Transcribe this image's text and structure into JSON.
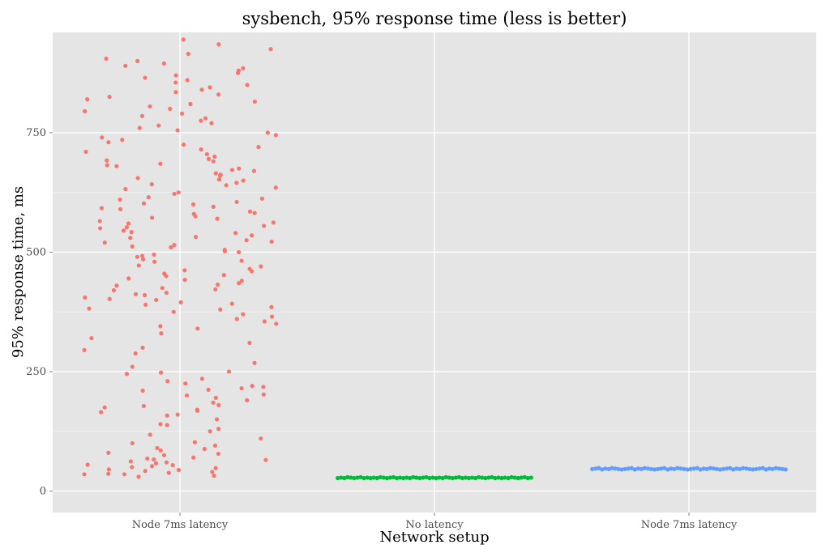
{
  "chart_data": {
    "type": "scatter",
    "title": "sysbench, 95% response time (less is better)",
    "xlabel": "Network setup",
    "ylabel": "95% response time, ms",
    "categories": [
      "Node 7ms latency",
      "No latency",
      "Node 7ms latency"
    ],
    "ylim": [
      -45,
      960
    ],
    "yticks": [
      0,
      250,
      500,
      750
    ],
    "grid": true,
    "legend": "none",
    "series": [
      {
        "category_index": 0,
        "color": "#F8766D",
        "values": [
          845,
          785,
          780,
          745,
          700,
          690,
          680,
          670,
          660,
          650,
          640,
          615,
          605,
          590,
          575,
          560,
          545,
          540,
          535,
          525,
          520,
          515,
          505,
          495,
          490,
          480,
          470,
          460,
          455,
          450,
          440,
          430,
          420,
          410,
          400,
          395,
          385,
          375,
          250,
          245,
          230,
          220,
          215,
          210,
          200,
          190,
          180,
          175,
          170,
          165,
          150,
          140,
          130,
          100,
          90,
          85,
          75,
          65,
          60,
          55,
          50,
          45,
          40,
          35,
          30,
          900,
          895,
          890,
          880,
          870,
          860,
          850,
          840,
          830,
          820,
          810,
          800,
          790,
          770,
          760,
          755,
          750,
          735,
          725,
          720,
          715,
          710,
          705,
          695,
          685,
          675,
          665,
          655,
          645,
          635,
          625,
          610,
          600,
          595,
          585,
          580,
          570,
          565,
          555,
          550,
          530,
          510,
          500,
          485,
          465,
          445,
          435,
          425,
          415,
          405,
          390,
          380,
          370,
          360,
          350,
          340,
          310,
          300,
          295,
          260,
          225,
          212,
          195,
          185,
          160,
          125,
          110,
          95,
          80,
          70,
          35,
          32,
          38,
          42,
          48,
          52,
          58,
          62,
          68,
          905,
          915,
          925,
          935,
          945,
          885,
          875,
          865,
          855,
          835,
          825,
          815,
          805,
          795,
          775,
          765,
          740,
          730,
          692,
          682,
          672,
          662,
          652,
          642,
          632,
          622,
          612,
          602,
          592,
          582,
          572,
          562,
          552,
          542,
          532,
          522,
          512,
          502,
          492,
          482,
          472,
          462,
          452,
          442,
          432,
          422,
          412,
          402,
          392,
          382,
          36,
          44,
          54,
          66,
          78,
          88,
          102,
          118,
          138,
          158,
          168,
          178,
          202,
          218,
          235,
          248,
          268,
          288,
          320,
          330,
          345,
          355,
          365
        ]
      },
      {
        "category_index": 1,
        "color": "#00BA38",
        "values": [
          27,
          28,
          27,
          29,
          28,
          27,
          28,
          29,
          27,
          28
        ]
      },
      {
        "category_index": 2,
        "color": "#619CFF",
        "values": [
          46,
          47,
          48,
          45,
          47,
          46,
          48,
          47,
          46,
          45
        ]
      }
    ]
  }
}
